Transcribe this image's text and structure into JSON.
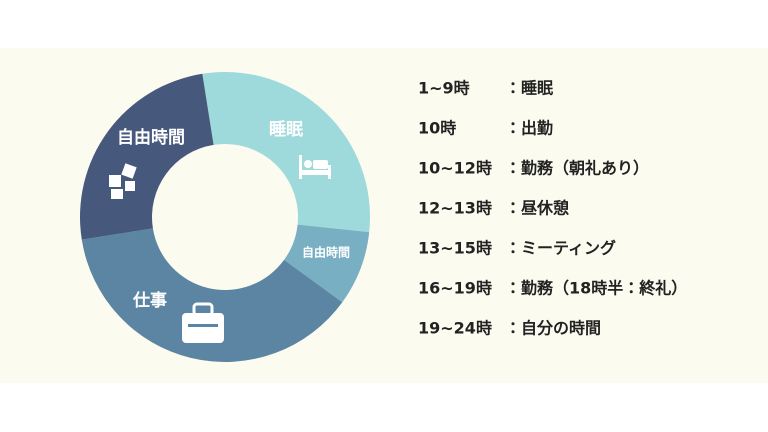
{
  "chart_data": {
    "type": "pie",
    "donut": true,
    "categories": [
      "睡眠",
      "自由時間",
      "仕事",
      "自由時間"
    ],
    "values": [
      7,
      2,
      9,
      6
    ],
    "colors": [
      "#9ed9db",
      "#78afc3",
      "#5b85a2",
      "#46587c"
    ]
  },
  "schedule": [
    {
      "time": "1~9時",
      "activity": "：睡眠"
    },
    {
      "time": "10時",
      "activity": "：出勤"
    },
    {
      "time": "10~12時",
      "activity": "：勤務（朝礼あり）"
    },
    {
      "time": "12~13時",
      "activity": "：昼休憩"
    },
    {
      "time": "13~15時",
      "activity": "：ミーティング"
    },
    {
      "time": "16~19時",
      "activity": "：勤務（18時半：終礼）"
    },
    {
      "time": "19~24時",
      "activity": "：自分の時間"
    }
  ]
}
